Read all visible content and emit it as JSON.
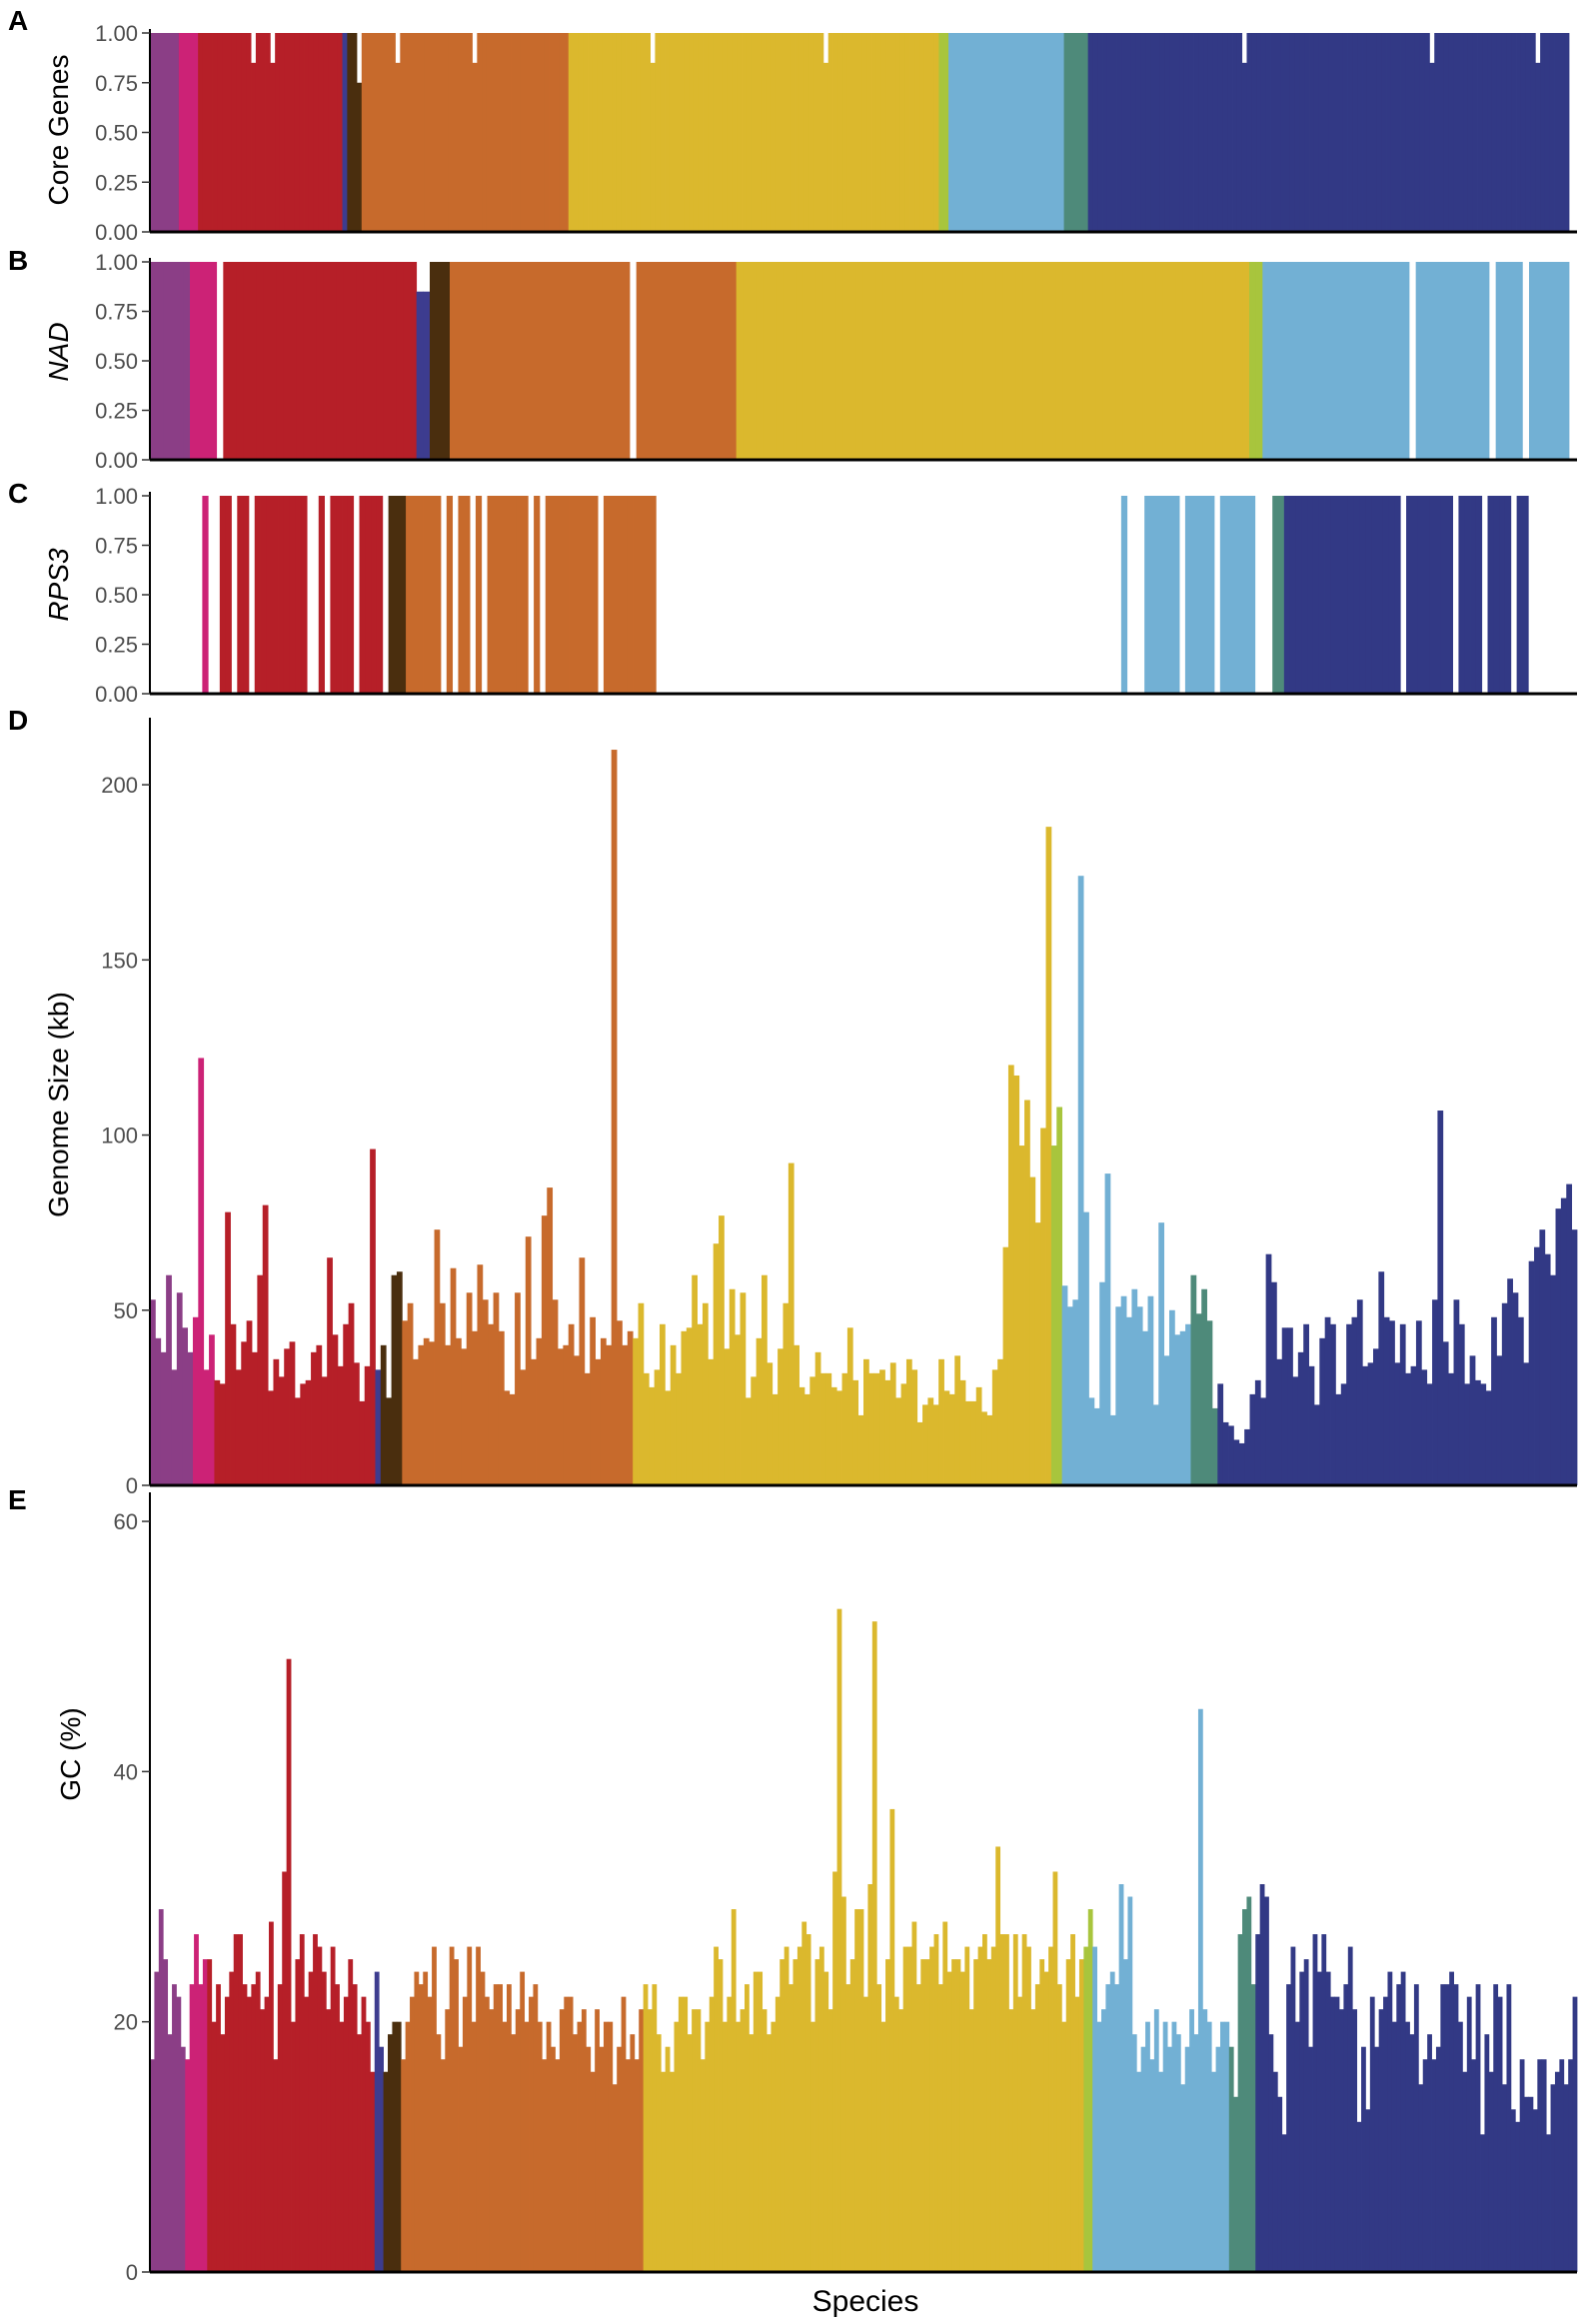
{
  "figure": {
    "x_label": "Species",
    "group_colors": [
      "#8b3e86",
      "#cc2276",
      "#b61f28",
      "#3d3c8f",
      "#4a2e0e",
      "#c76a2c",
      "#dbb82d",
      "#a8c53d",
      "#72b0d4",
      "#4e8a7a",
      "#323985"
    ],
    "panels": [
      {
        "letter": "A",
        "ylabel": "Core Genes",
        "italic": false,
        "ticks": [
          "0.00",
          "0.25",
          "0.50",
          "0.75",
          "1.00"
        ]
      },
      {
        "letter": "B",
        "ylabel": "NAD",
        "italic": true,
        "ticks": [
          "0.00",
          "0.25",
          "0.50",
          "0.75",
          "1.00"
        ]
      },
      {
        "letter": "C",
        "ylabel": "RPS3",
        "italic": true,
        "ticks": [
          "0.00",
          "0.25",
          "0.50",
          "0.75",
          "1.00"
        ]
      },
      {
        "letter": "D",
        "ylabel": "Genome Size (kb)",
        "italic": false,
        "ticks": [
          "0",
          "50",
          "100",
          "150",
          "200"
        ]
      },
      {
        "letter": "E",
        "ylabel": "GC (%)",
        "italic": false,
        "ticks": [
          "0",
          "20",
          "40",
          "60"
        ]
      }
    ]
  },
  "chart_data": [
    {
      "type": "bar",
      "panel": "A",
      "title": "",
      "xlabel": "",
      "ylabel": "Core Genes",
      "ylim": [
        0,
        1
      ],
      "group_segments": [
        [
          0,
          6
        ],
        [
          1,
          4
        ],
        [
          2,
          30
        ],
        [
          3,
          1
        ],
        [
          4,
          3
        ],
        [
          5,
          43
        ],
        [
          6,
          77
        ],
        [
          7,
          2
        ],
        [
          8,
          24
        ],
        [
          9,
          5
        ],
        [
          10,
          49
        ]
      ],
      "values": [
        1,
        1,
        1,
        1,
        1,
        1,
        1,
        1,
        1,
        1,
        1,
        1,
        1,
        1,
        1,
        1,
        1,
        1,
        1,
        1,
        1,
        0.85,
        1,
        1,
        1,
        0.85,
        1,
        1,
        1,
        1,
        1,
        1,
        1,
        1,
        1,
        1,
        1,
        1,
        1,
        1,
        1,
        1,
        1,
        0.75,
        1,
        1,
        1,
        1,
        1,
        1,
        1,
        0.85,
        1,
        1,
        1,
        1,
        1,
        1,
        1,
        1,
        1,
        1,
        1,
        1,
        1,
        1,
        1,
        0.85,
        1,
        1,
        1,
        1,
        1,
        1,
        1,
        1,
        1,
        1,
        1,
        1,
        1,
        1,
        1,
        1,
        1,
        1,
        1,
        1,
        1,
        1,
        1,
        1,
        1,
        1,
        1,
        1,
        1,
        1,
        1,
        1,
        1,
        1,
        1,
        1,
        0.85,
        1,
        1,
        1,
        1,
        1,
        1,
        1,
        1,
        1,
        1,
        1,
        1,
        1,
        1,
        1,
        1,
        1,
        1,
        1,
        1,
        1,
        1,
        1,
        1,
        1,
        1,
        1,
        1,
        1,
        1,
        1,
        1,
        1,
        1,
        1,
        0.85,
        1,
        1,
        1,
        1,
        1,
        1,
        1,
        1,
        1,
        1,
        1,
        1,
        1,
        1,
        1,
        1,
        1,
        1,
        1,
        1,
        1,
        1,
        1,
        1,
        1,
        1,
        1,
        1,
        1,
        1,
        1,
        1,
        1,
        1,
        1,
        1,
        1,
        1,
        1,
        1,
        1,
        1,
        1,
        1,
        1,
        1,
        1,
        1,
        1,
        1,
        1,
        1,
        1,
        1,
        1,
        1,
        1,
        1,
        1,
        1,
        1,
        1,
        1,
        1,
        1,
        1,
        1,
        1,
        1,
        1,
        1,
        1,
        1,
        1,
        1,
        1,
        1,
        1,
        1,
        1,
        1,
        1,
        1,
        1,
        1,
        1,
        0.85,
        1,
        1,
        1,
        1,
        1,
        1,
        1,
        1,
        1,
        1,
        1,
        1,
        1,
        1,
        1,
        1,
        1,
        1,
        1,
        1,
        1,
        1,
        1,
        1,
        1,
        1,
        1,
        1,
        1,
        1,
        1,
        1,
        1,
        1,
        1,
        1,
        1,
        1,
        0.85,
        1,
        1,
        1,
        1,
        1,
        1,
        1,
        1,
        1,
        1,
        1,
        1,
        1,
        1,
        1,
        1,
        1,
        1,
        1,
        1,
        1,
        0.85,
        1,
        1,
        1,
        1,
        1,
        1
      ]
    },
    {
      "type": "bar",
      "panel": "B",
      "title": "",
      "xlabel": "",
      "ylabel": "NAD",
      "ylim": [
        0,
        1
      ],
      "group_segments": [
        [
          0,
          6
        ],
        [
          1,
          4
        ],
        [
          2,
          30
        ],
        [
          3,
          2
        ],
        [
          4,
          3
        ],
        [
          5,
          43
        ],
        [
          6,
          77
        ],
        [
          7,
          2
        ],
        [
          8,
          22
        ],
        [
          9,
          0
        ],
        [
          10,
          0
        ]
      ],
      "values": [
        1,
        1,
        1,
        1,
        1,
        1,
        1,
        1,
        1,
        1,
        0,
        1,
        1,
        1,
        1,
        1,
        1,
        1,
        1,
        1,
        1,
        1,
        1,
        1,
        1,
        1,
        1,
        1,
        1,
        1,
        1,
        1,
        1,
        1,
        1,
        1,
        1,
        1,
        1,
        1,
        0.85,
        0.85,
        1,
        1,
        1,
        1,
        1,
        1,
        1,
        1,
        1,
        1,
        1,
        1,
        1,
        1,
        1,
        1,
        1,
        1,
        1,
        1,
        1,
        1,
        1,
        1,
        1,
        1,
        1,
        1,
        1,
        1,
        0,
        1,
        1,
        1,
        1,
        1,
        1,
        1,
        1,
        1,
        1,
        1,
        1,
        1,
        1,
        1,
        1,
        1,
        1,
        1,
        1,
        1,
        1,
        1,
        1,
        1,
        1,
        1,
        1,
        1,
        1,
        1,
        1,
        1,
        1,
        1,
        1,
        1,
        1,
        1,
        1,
        1,
        1,
        1,
        1,
        1,
        1,
        1,
        1,
        1,
        1,
        1,
        1,
        1,
        1,
        1,
        1,
        1,
        1,
        1,
        1,
        1,
        1,
        1,
        1,
        1,
        1,
        1,
        1,
        1,
        1,
        1,
        1,
        1,
        1,
        1,
        1,
        1,
        1,
        1,
        1,
        1,
        1,
        1,
        1,
        1,
        1,
        1,
        1,
        1,
        1,
        1,
        1,
        1,
        1,
        1,
        1,
        1,
        1,
        1,
        1,
        1,
        1,
        1,
        1,
        1,
        1,
        1,
        1,
        1,
        1,
        1,
        1,
        1,
        1,
        1,
        1,
        0,
        1,
        1,
        1,
        1,
        1,
        1,
        1,
        1,
        1,
        1,
        1,
        0,
        1,
        1,
        1,
        1,
        0,
        1,
        1,
        1,
        1,
        1,
        1
      ]
    },
    {
      "type": "bar",
      "panel": "C",
      "title": "",
      "xlabel": "",
      "ylabel": "RPS3",
      "ylim": [
        0,
        1
      ],
      "present_ranges": [
        [
          9,
          9
        ],
        [
          12,
          13
        ],
        [
          15,
          16
        ],
        [
          18,
          26
        ],
        [
          29,
          29
        ],
        [
          31,
          34
        ],
        [
          36,
          39
        ],
        [
          41,
          43
        ],
        [
          44,
          45
        ],
        [
          46,
          49
        ],
        [
          51,
          51
        ],
        [
          53,
          54
        ],
        [
          56,
          56
        ],
        [
          58,
          64
        ],
        [
          66,
          66
        ],
        [
          68,
          76
        ],
        [
          78,
          86
        ],
        [
          167,
          167
        ],
        [
          171,
          176
        ],
        [
          178,
          182
        ],
        [
          184,
          188
        ],
        [
          189,
          189
        ],
        [
          193,
          214
        ],
        [
          216,
          223
        ],
        [
          225,
          228
        ],
        [
          230,
          233
        ],
        [
          235,
          236
        ]
      ]
    },
    {
      "type": "bar",
      "panel": "D",
      "title": "",
      "xlabel": "Species",
      "ylabel": "Genome Size (kb)",
      "ylim": [
        0,
        218
      ],
      "values": [
        53,
        42,
        38,
        60,
        33,
        55,
        45,
        38,
        48,
        122,
        33,
        43,
        30,
        29,
        78,
        46,
        33,
        41,
        47,
        38,
        60,
        80,
        27,
        36,
        31,
        39,
        41,
        25,
        29,
        30,
        38,
        40,
        31,
        65,
        43,
        34,
        46,
        52,
        35,
        24,
        34,
        96,
        33,
        40,
        25,
        60,
        61,
        47,
        52,
        36,
        40,
        42,
        41,
        73,
        52,
        40,
        62,
        42,
        39,
        55,
        44,
        63,
        53,
        46,
        55,
        44,
        27,
        26,
        55,
        33,
        71,
        36,
        42,
        77,
        85,
        53,
        39,
        40,
        46,
        37,
        65,
        32,
        48,
        36,
        42,
        40,
        210,
        47,
        40,
        44,
        42,
        52,
        32,
        28,
        33,
        46,
        27,
        40,
        32,
        44,
        45,
        60,
        46,
        52,
        36,
        69,
        77,
        39,
        56,
        43,
        55,
        25,
        31,
        42,
        60,
        35,
        26,
        39,
        52,
        92,
        40,
        28,
        26,
        31,
        38,
        32,
        32,
        28,
        27,
        32,
        45,
        30,
        20,
        36,
        32,
        32,
        33,
        30,
        35,
        25,
        29,
        36,
        33,
        18,
        23,
        25,
        23,
        36,
        27,
        26,
        37,
        30,
        24,
        24,
        28,
        21,
        20,
        33,
        36,
        68,
        120,
        117,
        97,
        110,
        88,
        75,
        102,
        188,
        97,
        108,
        57,
        51,
        53,
        174,
        78,
        25,
        22,
        58,
        89,
        20,
        51,
        54,
        48,
        56,
        51,
        44,
        54,
        23,
        75,
        37,
        50,
        43,
        44,
        46,
        60,
        49,
        56,
        47,
        22,
        29,
        18,
        17,
        13,
        12,
        16,
        26,
        30,
        25,
        66,
        58,
        36,
        45,
        45,
        31,
        38,
        46,
        34,
        23,
        42,
        48,
        46,
        26,
        29,
        46,
        48,
        53,
        34,
        35,
        39,
        61,
        48,
        47,
        35,
        46,
        32,
        34,
        47,
        33,
        29,
        53,
        107,
        41,
        32,
        53,
        46,
        29,
        37,
        30,
        29,
        27,
        48,
        37,
        52,
        59,
        55,
        48,
        35,
        64,
        68,
        73,
        66,
        60,
        79,
        82,
        86,
        73
      ]
    },
    {
      "type": "bar",
      "panel": "E",
      "title": "",
      "xlabel": "Species",
      "ylabel": "GC (%)",
      "ylim": [
        0,
        62
      ],
      "values": [
        17,
        24,
        29,
        25,
        19,
        23,
        22,
        18,
        17,
        23,
        27,
        23,
        25,
        25,
        20,
        23,
        19,
        22,
        24,
        27,
        27,
        23,
        22,
        23,
        24,
        21,
        22,
        28,
        17,
        23,
        32,
        49,
        20,
        25,
        27,
        22,
        24,
        27,
        26,
        24,
        21,
        26,
        23,
        20,
        22,
        25,
        23,
        19,
        22,
        20,
        16,
        24,
        18,
        16,
        19,
        20,
        20,
        17,
        20,
        22,
        24,
        23,
        24,
        22,
        26,
        19,
        17,
        21,
        26,
        25,
        18,
        22,
        26,
        20,
        26,
        24,
        22,
        21,
        23,
        23,
        20,
        23,
        19,
        21,
        24,
        20,
        22,
        23,
        20,
        17,
        20,
        18,
        17,
        21,
        22,
        22,
        19,
        20,
        21,
        18,
        16,
        21,
        18,
        20,
        20,
        15,
        18,
        22,
        17,
        19,
        17,
        21,
        23,
        21,
        23,
        19,
        16,
        18,
        16,
        20,
        22,
        22,
        19,
        21,
        21,
        17,
        20,
        22,
        26,
        25,
        20,
        22,
        29,
        20,
        21,
        23,
        19,
        24,
        24,
        21,
        19,
        20,
        22,
        25,
        26,
        23,
        25,
        26,
        28,
        27,
        20,
        25,
        26,
        24,
        21,
        32,
        53,
        30,
        23,
        25,
        29,
        29,
        22,
        31,
        52,
        23,
        20,
        25,
        37,
        22,
        21,
        26,
        26,
        28,
        23,
        25,
        25,
        26,
        27,
        23,
        28,
        24,
        25,
        25,
        24,
        26,
        21,
        25,
        26,
        27,
        25,
        26,
        34,
        27,
        27,
        21,
        27,
        22,
        27,
        26,
        21,
        23,
        25,
        24,
        26,
        32,
        23,
        20,
        25,
        27,
        22,
        25,
        26,
        29,
        26,
        20,
        21,
        23,
        24,
        23,
        31,
        25,
        30,
        19,
        16,
        18,
        20,
        17,
        21,
        16,
        20,
        18,
        20,
        19,
        15,
        18,
        21,
        19,
        45,
        21,
        20,
        16,
        18,
        20,
        20,
        18,
        14,
        27,
        29,
        30,
        23,
        27,
        31,
        30,
        19,
        16,
        14,
        11,
        23,
        26,
        20,
        24,
        25,
        18,
        27,
        24,
        27,
        24,
        22,
        22,
        21,
        23,
        26,
        21,
        12,
        18,
        13,
        22,
        18,
        21,
        22,
        24,
        20,
        23,
        24,
        20,
        19,
        23,
        15,
        17,
        19,
        17,
        18,
        23,
        23,
        24,
        23,
        20,
        16,
        22,
        17,
        23,
        11,
        19,
        16,
        23,
        22,
        15,
        23,
        13,
        12,
        17,
        14,
        14,
        13,
        17,
        17,
        11,
        15,
        16,
        17,
        15,
        17,
        22
      ]
    }
  ]
}
